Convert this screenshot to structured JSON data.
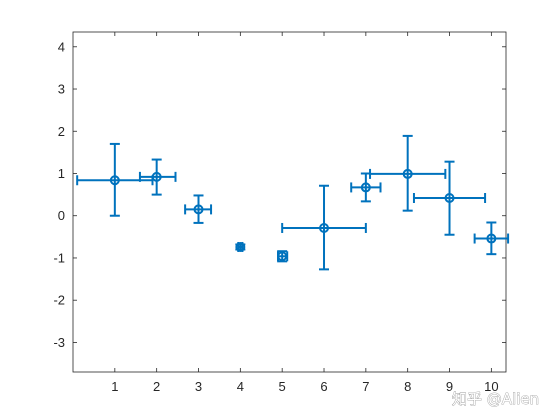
{
  "chart_data": {
    "type": "scatter",
    "title": "",
    "xlabel": "",
    "ylabel": "",
    "xlim": [
      0,
      10.35
    ],
    "ylim": [
      -3.7,
      4.35
    ],
    "xticks": [
      1,
      2,
      3,
      4,
      5,
      6,
      7,
      8,
      9,
      10
    ],
    "yticks": [
      -3,
      -2,
      -1,
      0,
      1,
      2,
      3,
      4
    ],
    "grid": false,
    "legend": "none",
    "series_color": "#0072BD",
    "points": [
      {
        "x": 1,
        "y": 0.84,
        "yneg": 0.84,
        "ypos": 0.86,
        "xneg": 0.9,
        "xpos": 0.9
      },
      {
        "x": 2,
        "y": 0.92,
        "yneg": 0.42,
        "ypos": 0.41,
        "xneg": 0.4,
        "xpos": 0.45
      },
      {
        "x": 3,
        "y": 0.15,
        "yneg": 0.32,
        "ypos": 0.33,
        "xneg": 0.32,
        "xpos": 0.3
      },
      {
        "x": 4,
        "y": -0.74,
        "yneg": 0.06,
        "ypos": 0.06,
        "xneg": 0.05,
        "xpos": 0.05
      },
      {
        "x": 5,
        "y": -0.96,
        "yneg": 0.12,
        "ypos": 0.12,
        "xneg": 0.1,
        "xpos": 0.12
      },
      {
        "x": 6,
        "y": -0.29,
        "yneg": 0.98,
        "ypos": 1.0,
        "xneg": 1.0,
        "xpos": 1.0
      },
      {
        "x": 7,
        "y": 0.67,
        "yneg": 0.33,
        "ypos": 0.33,
        "xneg": 0.35,
        "xpos": 0.35
      },
      {
        "x": 8,
        "y": 0.99,
        "yneg": 0.87,
        "ypos": 0.9,
        "xneg": 0.9,
        "xpos": 0.9
      },
      {
        "x": 9,
        "y": 0.42,
        "yneg": 0.87,
        "ypos": 0.86,
        "xneg": 0.85,
        "xpos": 0.85
      },
      {
        "x": 10,
        "y": -0.54,
        "yneg": 0.37,
        "ypos": 0.38,
        "xneg": 0.4,
        "xpos": 0.4
      }
    ]
  },
  "watermark": {
    "text": "知乎 @Alien"
  }
}
